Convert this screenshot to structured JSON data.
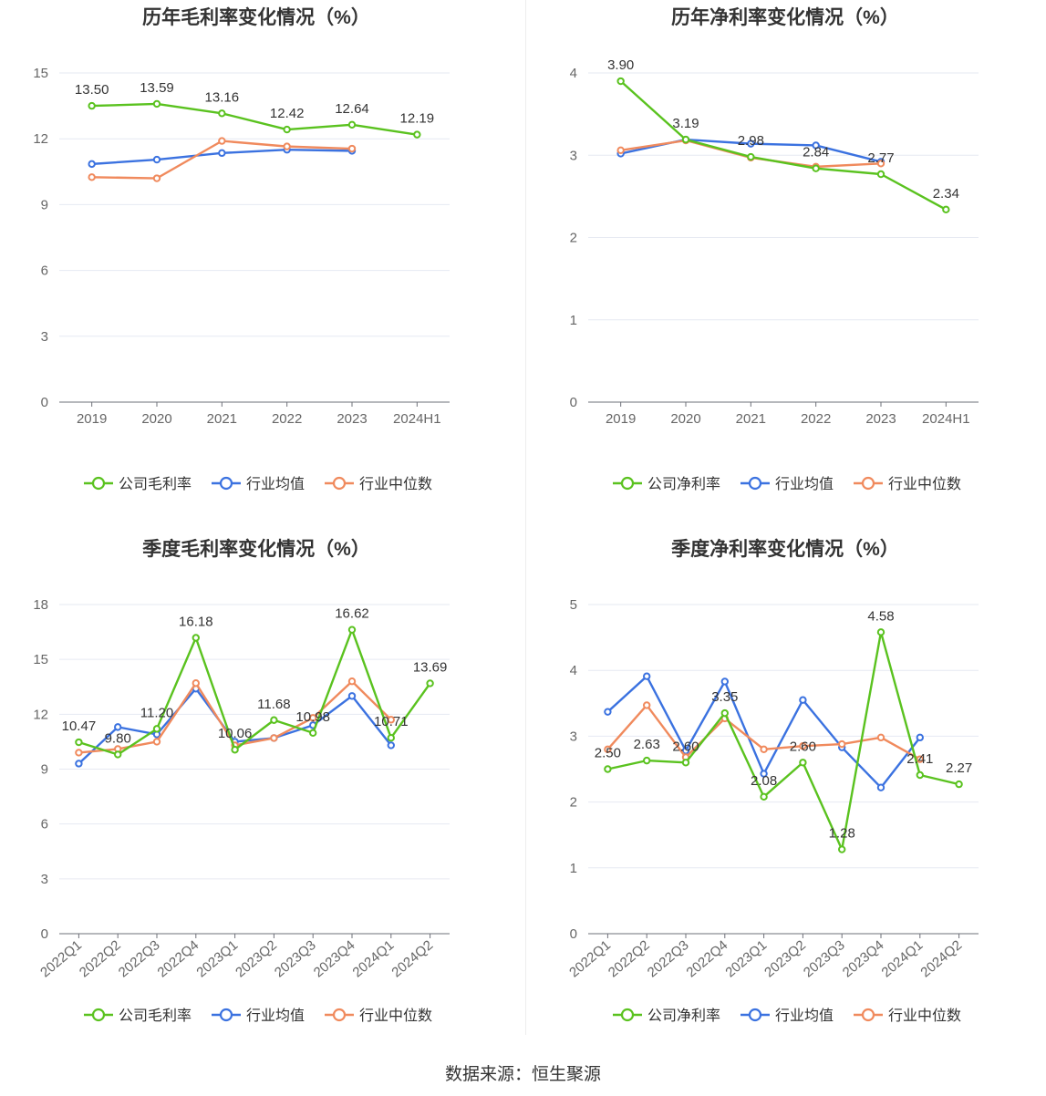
{
  "source": "数据来源：恒生聚源",
  "colors": {
    "company": "#5ac21f",
    "avg": "#3b72e0",
    "median": "#f08a5d",
    "grid": "#e6e9f2",
    "axis": "#666666",
    "label": "#333333"
  },
  "chart_data": [
    {
      "type": "line",
      "title": "历年毛利率变化情况（%）",
      "categories": [
        "2019",
        "2020",
        "2021",
        "2022",
        "2023",
        "2024H1"
      ],
      "ylim": [
        0,
        15
      ],
      "yticks": [
        0,
        3,
        6,
        9,
        12,
        15
      ],
      "legend": [
        "公司毛利率",
        "行业均值",
        "行业中位数"
      ],
      "series": [
        {
          "name": "公司毛利率",
          "key": "company",
          "values": [
            13.5,
            13.59,
            13.16,
            12.42,
            12.64,
            12.19
          ],
          "labels": [
            "13.50",
            "13.59",
            "13.16",
            "12.42",
            "12.64",
            "12.19"
          ]
        },
        {
          "name": "行业均值",
          "key": "avg",
          "values": [
            10.85,
            11.05,
            11.35,
            11.5,
            11.45,
            null
          ]
        },
        {
          "name": "行业中位数",
          "key": "median",
          "values": [
            10.25,
            10.2,
            11.9,
            11.65,
            11.55,
            null
          ]
        }
      ]
    },
    {
      "type": "line",
      "title": "历年净利率变化情况（%）",
      "categories": [
        "2019",
        "2020",
        "2021",
        "2022",
        "2023",
        "2024H1"
      ],
      "ylim": [
        0,
        4
      ],
      "yticks": [
        0,
        1,
        2,
        3,
        4
      ],
      "legend": [
        "公司净利率",
        "行业均值",
        "行业中位数"
      ],
      "series": [
        {
          "name": "公司净利率",
          "key": "company",
          "values": [
            3.9,
            3.19,
            2.98,
            2.84,
            2.77,
            2.34
          ],
          "labels": [
            "3.90",
            "3.19",
            "2.98",
            "2.84",
            "2.77",
            "2.34"
          ]
        },
        {
          "name": "行业均值",
          "key": "avg",
          "values": [
            3.02,
            3.19,
            3.14,
            3.12,
            2.92,
            null
          ]
        },
        {
          "name": "行业中位数",
          "key": "median",
          "values": [
            3.06,
            3.18,
            2.97,
            2.86,
            2.9,
            null
          ]
        }
      ]
    },
    {
      "type": "line",
      "title": "季度毛利率变化情况（%）",
      "categories": [
        "2022Q1",
        "2022Q2",
        "2022Q3",
        "2022Q4",
        "2023Q1",
        "2023Q2",
        "2023Q3",
        "2023Q4",
        "2024Q1",
        "2024Q2"
      ],
      "ylim": [
        0,
        18
      ],
      "yticks": [
        0,
        3,
        6,
        9,
        12,
        15,
        18
      ],
      "legend": [
        "公司毛利率",
        "行业均值",
        "行业中位数"
      ],
      "series": [
        {
          "name": "公司毛利率",
          "key": "company",
          "values": [
            10.47,
            9.8,
            11.2,
            16.18,
            10.06,
            11.68,
            10.98,
            16.62,
            10.71,
            13.69
          ],
          "labels": [
            "10.47",
            "9.80",
            "11.20",
            "16.18",
            "10.06",
            "11.68",
            "10.98",
            "16.62",
            "10.71",
            "13.69"
          ]
        },
        {
          "name": "行业均值",
          "key": "avg",
          "values": [
            9.3,
            11.3,
            10.9,
            13.4,
            10.5,
            10.7,
            11.4,
            13.0,
            10.3,
            null
          ]
        },
        {
          "name": "行业中位数",
          "key": "median",
          "values": [
            9.9,
            10.1,
            10.5,
            13.7,
            10.3,
            10.7,
            11.8,
            13.8,
            11.7,
            null
          ]
        }
      ]
    },
    {
      "type": "line",
      "title": "季度净利率变化情况（%）",
      "categories": [
        "2022Q1",
        "2022Q2",
        "2022Q3",
        "2022Q4",
        "2023Q1",
        "2023Q2",
        "2023Q3",
        "2023Q4",
        "2024Q1",
        "2024Q2"
      ],
      "ylim": [
        0,
        5
      ],
      "yticks": [
        0,
        1,
        2,
        3,
        4,
        5
      ],
      "legend": [
        "公司净利率",
        "行业均值",
        "行业中位数"
      ],
      "series": [
        {
          "name": "公司净利率",
          "key": "company",
          "values": [
            2.5,
            2.63,
            2.6,
            3.35,
            2.08,
            2.6,
            1.28,
            4.58,
            2.41,
            2.27
          ],
          "labels": [
            "2.50",
            "2.63",
            "2.60",
            "3.35",
            "2.08",
            "2.60",
            "1.28",
            "4.58",
            "2.41",
            "2.27"
          ]
        },
        {
          "name": "行业均值",
          "key": "avg",
          "values": [
            3.37,
            3.91,
            2.78,
            3.83,
            2.43,
            3.55,
            2.83,
            2.22,
            2.98,
            null
          ]
        },
        {
          "name": "行业中位数",
          "key": "median",
          "values": [
            2.8,
            3.47,
            2.68,
            3.27,
            2.8,
            2.85,
            2.88,
            2.98,
            2.65,
            null
          ]
        }
      ]
    }
  ]
}
